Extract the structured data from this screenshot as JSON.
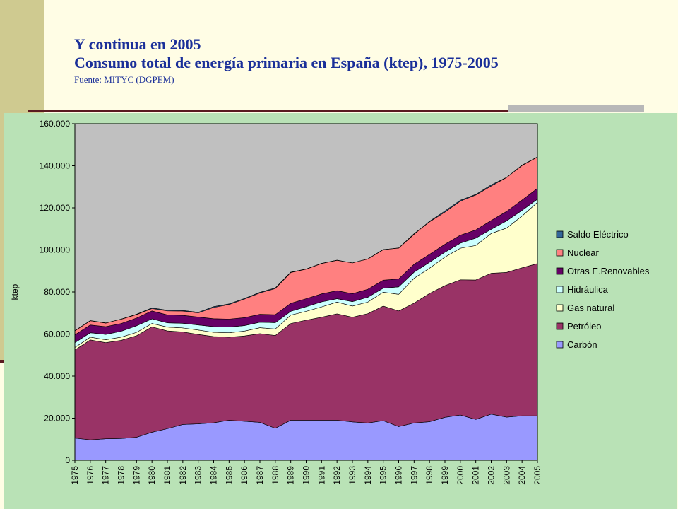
{
  "header": {
    "title": "Y continua en 2005",
    "subtitle": "Consumo total de energía primaria en España (ktep), 1975-2005",
    "source": "Fuente: MITYC (DGPEM)"
  },
  "colors": {
    "plot_bg": "#c0c0c0",
    "panel_bg": "#b9e2b6",
    "slide_bg": "#fffde5",
    "accent_band": "#cfca90",
    "title_color": "#1a2f99"
  },
  "chart_data": {
    "type": "area",
    "stacked": true,
    "title": "",
    "xlabel": "",
    "ylabel": "ktep",
    "ylim": [
      0,
      160000
    ],
    "yticks": [
      "0",
      "20.000",
      "40.000",
      "60.000",
      "80.000",
      "100.000",
      "120.000",
      "140.000",
      "160.000"
    ],
    "grid": false,
    "legend_position": "right",
    "x": [
      "1975",
      "1976",
      "1977",
      "1978",
      "1979",
      "1980",
      "1981",
      "1982",
      "1983",
      "1984",
      "1985",
      "1986",
      "1987",
      "1988",
      "1989",
      "1990",
      "1991",
      "1992",
      "1993",
      "1994",
      "1995",
      "1996",
      "1997",
      "1998",
      "1999",
      "2000",
      "2001",
      "2002",
      "2003",
      "2004",
      "2005"
    ],
    "series": [
      {
        "name": "Carbón",
        "color": "#9999ff",
        "values": [
          10500,
          9700,
          10200,
          10300,
          10900,
          13300,
          15000,
          17000,
          17300,
          17800,
          19000,
          18500,
          18000,
          15200,
          19000,
          19000,
          19000,
          19000,
          18200,
          17700,
          18800,
          16000,
          17700,
          18300,
          20400,
          21500,
          19400,
          21900,
          20500,
          21100,
          21100
        ]
      },
      {
        "name": "Petróleo",
        "color": "#993366",
        "values": [
          41900,
          47500,
          45700,
          46700,
          48300,
          50100,
          46500,
          44000,
          42500,
          41000,
          39500,
          40600,
          42200,
          44100,
          46000,
          47600,
          49000,
          50600,
          49800,
          52000,
          54500,
          55000,
          57000,
          61000,
          62600,
          64300,
          66300,
          67000,
          68800,
          70400,
          72400
        ]
      },
      {
        "name": "Gas natural",
        "color": "#ffffcc",
        "values": [
          1200,
          1300,
          1400,
          1500,
          1600,
          1600,
          1800,
          1900,
          2100,
          2000,
          2100,
          2300,
          2800,
          3100,
          4000,
          4200,
          4900,
          5600,
          5300,
          5500,
          6600,
          7900,
          11800,
          12000,
          13600,
          15000,
          16400,
          18900,
          21100,
          24600,
          29100
        ]
      },
      {
        "name": "Hidráulica",
        "color": "#ccffff",
        "values": [
          2300,
          2100,
          2500,
          2800,
          3100,
          2200,
          2000,
          2200,
          2400,
          2700,
          2700,
          2600,
          2600,
          3000,
          1800,
          2200,
          2400,
          1600,
          2100,
          2300,
          1900,
          3500,
          2900,
          2800,
          2300,
          2400,
          3500,
          2000,
          3400,
          2700,
          1500
        ]
      },
      {
        "name": "Otras E.Renovables",
        "color": "#660066",
        "values": [
          3700,
          3700,
          3700,
          3700,
          3700,
          3800,
          3800,
          3800,
          3800,
          3800,
          3800,
          3800,
          3800,
          3800,
          3800,
          3800,
          3800,
          3800,
          3800,
          3800,
          3800,
          3800,
          3800,
          3800,
          3800,
          3800,
          3900,
          4200,
          4500,
          4900,
          5200
        ]
      },
      {
        "name": "Nuclear",
        "color": "#ff8080",
        "values": [
          1900,
          2000,
          1700,
          2100,
          1800,
          1400,
          2200,
          2300,
          2200,
          5700,
          7200,
          9100,
          10400,
          12700,
          14800,
          14100,
          14500,
          14500,
          14600,
          14400,
          14500,
          14700,
          14500,
          15400,
          15300,
          16200,
          16600,
          16400,
          16100,
          16600,
          14900
        ]
      },
      {
        "name": "Saldo Eléctrico",
        "color": "#336699",
        "values": [
          100,
          100,
          100,
          -100,
          -200,
          -300,
          -300,
          -300,
          -300,
          -400,
          -300,
          -300,
          -300,
          -300,
          -200,
          -100,
          -100,
          -100,
          0,
          0,
          100,
          -100,
          -300,
          300,
          500,
          400,
          300,
          500,
          100,
          -200,
          -100
        ]
      }
    ]
  }
}
